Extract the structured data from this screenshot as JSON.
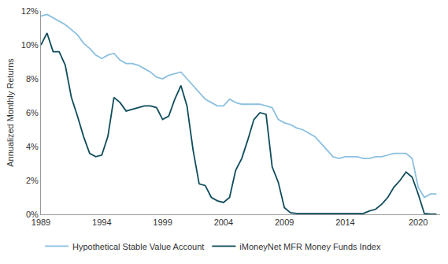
{
  "chart_data": {
    "type": "line",
    "y_label": "Annualized Monthly Returns",
    "x": [
      1989,
      1989.5,
      1990,
      1990.5,
      1991,
      1991.5,
      1992,
      1992.5,
      1993,
      1993.5,
      1994,
      1994.5,
      1995,
      1995.5,
      1996,
      1996.5,
      1997,
      1997.5,
      1998,
      1998.5,
      1999,
      1999.5,
      2000,
      2000.5,
      2001,
      2001.5,
      2002,
      2002.5,
      2003,
      2003.5,
      2004,
      2004.5,
      2005,
      2005.5,
      2006,
      2006.5,
      2007,
      2007.5,
      2008,
      2008.5,
      2009,
      2009.5,
      2010,
      2010.5,
      2011,
      2011.5,
      2012,
      2012.5,
      2013,
      2013.5,
      2014,
      2014.5,
      2015,
      2015.5,
      2016,
      2016.5,
      2017,
      2017.5,
      2018,
      2018.5,
      2019,
      2019.5,
      2020,
      2020.5,
      2021,
      2021.5
    ],
    "series": [
      {
        "name": "Hypothetical Stable Value Account",
        "color": "#8cc0e0",
        "values": [
          11.7,
          11.8,
          11.6,
          11.4,
          11.2,
          10.9,
          10.6,
          10.1,
          9.8,
          9.4,
          9.2,
          9.4,
          9.5,
          9.1,
          8.9,
          8.9,
          8.8,
          8.6,
          8.4,
          8.1,
          8.0,
          8.2,
          8.3,
          8.4,
          8.0,
          7.6,
          7.2,
          6.8,
          6.6,
          6.4,
          6.4,
          6.8,
          6.6,
          6.5,
          6.5,
          6.5,
          6.5,
          6.4,
          6.3,
          5.6,
          5.4,
          5.3,
          5.1,
          5.0,
          4.8,
          4.6,
          4.2,
          3.8,
          3.4,
          3.3,
          3.4,
          3.4,
          3.4,
          3.3,
          3.3,
          3.4,
          3.4,
          3.5,
          3.6,
          3.6,
          3.6,
          3.3,
          1.6,
          1.0,
          1.2,
          1.2
        ]
      },
      {
        "name": "iMoneyNet MFR Money Funds Index",
        "color": "#0f4c5c",
        "values": [
          10.0,
          10.7,
          9.6,
          9.6,
          8.8,
          6.9,
          5.8,
          4.6,
          3.6,
          3.4,
          3.5,
          4.6,
          6.9,
          6.6,
          6.1,
          6.2,
          6.3,
          6.4,
          6.4,
          6.3,
          5.6,
          5.8,
          6.8,
          7.6,
          6.4,
          3.8,
          1.8,
          1.7,
          1.0,
          0.8,
          0.7,
          1.0,
          2.6,
          3.3,
          4.4,
          5.6,
          6.0,
          5.9,
          2.8,
          1.9,
          0.4,
          0.1,
          0.05,
          0.05,
          0.05,
          0.05,
          0.05,
          0.05,
          0.05,
          0.05,
          0.05,
          0.05,
          0.05,
          0.05,
          0.2,
          0.3,
          0.6,
          1.0,
          1.6,
          2.0,
          2.5,
          2.2,
          1.2,
          0.05,
          0.02,
          0.02
        ]
      }
    ],
    "xlim": [
      1989,
      2021.8
    ],
    "xticks": [
      1989,
      1994,
      1999,
      2004,
      2009,
      2014,
      2020
    ],
    "ylim": [
      0,
      12
    ],
    "yticks": [
      {
        "value": 0,
        "label": "0%"
      },
      {
        "value": 2,
        "label": "2%"
      },
      {
        "value": 4,
        "label": "4%"
      },
      {
        "value": 6,
        "label": "6%"
      },
      {
        "value": 8,
        "label": "8%"
      },
      {
        "value": 10,
        "label": "10%"
      },
      {
        "value": 12,
        "label": "12%"
      }
    ],
    "grid": false,
    "legend": "bottom"
  }
}
